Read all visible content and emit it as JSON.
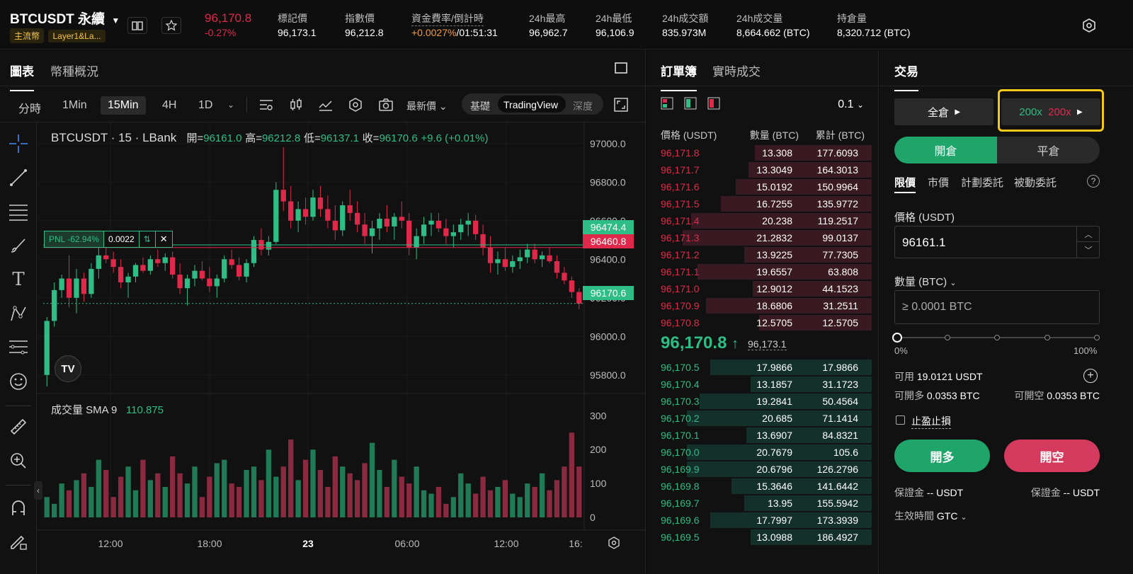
{
  "header": {
    "symbol": "BTCUSDT 永續",
    "tags": [
      "主流幣",
      "Layer1&La..."
    ],
    "price": "96,170.8",
    "change": "-0.27%",
    "stats": [
      {
        "label": "標記價",
        "value": "96,173.1"
      },
      {
        "label": "指數價",
        "value": "96,212.8"
      },
      {
        "label": "資金費率/倒計時",
        "value_rate": "+0.0027%",
        "value_time": "/01:51:31"
      },
      {
        "label": "24h最高",
        "value": "96,962.7"
      },
      {
        "label": "24h最低",
        "value": "96,106.9"
      },
      {
        "label": "24h成交額",
        "value": "835.973M"
      },
      {
        "label": "24h成交量",
        "value": "8,664.662 (BTC)"
      },
      {
        "label": "持倉量",
        "value": "8,320.712 (BTC)"
      }
    ]
  },
  "chart_panel": {
    "tabs": [
      "圖表",
      "幣種概況"
    ],
    "intervals": [
      "分時",
      "1Min",
      "15Min",
      "4H",
      "1D"
    ],
    "selected_interval": "15Min",
    "price_type": "最新價",
    "views": [
      "基礎",
      "TradingView",
      "深度"
    ],
    "selected_view": "TradingView",
    "legend": {
      "title": "BTCUSDT · 15 · LBank",
      "open_label": "開=",
      "open": "96161.0",
      "high_label": "高=",
      "high": "96212.8",
      "low_label": "低=",
      "low": "96137.1",
      "close_label": "收=",
      "close": "96170.6",
      "change": "+9.6 (+0.01%)"
    },
    "pnl": {
      "label": "PNL -62.94%",
      "qty": "0.0022"
    },
    "price_tags": {
      "green_top": "96474.4",
      "red": "96460.8",
      "last": "96170.6"
    },
    "volume_legend": {
      "label": "成交量 SMA 9",
      "value": "110.875"
    }
  },
  "chart_data": {
    "type": "candlestick",
    "y_ticks": [
      "97000.0",
      "96800.0",
      "96600.0",
      "96400.0",
      "96200.0",
      "96000.0",
      "95800.0"
    ],
    "x_ticks": [
      "12:00",
      "18:00",
      "23",
      "06:00",
      "12:00",
      "16:"
    ],
    "volume_ticks": [
      "300",
      "200",
      "100",
      "0"
    ],
    "ylim": [
      95700,
      97080
    ],
    "volume_ylim": [
      0,
      330
    ],
    "candles_ohlc": [
      [
        95800,
        96100,
        95740,
        96080
      ],
      [
        96080,
        96280,
        96050,
        96240
      ],
      [
        96240,
        96320,
        96200,
        96300
      ],
      [
        96300,
        96420,
        96150,
        96200
      ],
      [
        96200,
        96350,
        96120,
        96300
      ],
      [
        96300,
        96330,
        96180,
        96220
      ],
      [
        96220,
        96380,
        96200,
        96350
      ],
      [
        96350,
        96460,
        96300,
        96420
      ],
      [
        96420,
        96470,
        96380,
        96400
      ],
      [
        96400,
        96440,
        96330,
        96360
      ],
      [
        96360,
        96400,
        96250,
        96280
      ],
      [
        96280,
        96330,
        96200,
        96310
      ],
      [
        96310,
        96380,
        96280,
        96370
      ],
      [
        96370,
        96410,
        96330,
        96340
      ],
      [
        96340,
        96420,
        96320,
        96400
      ],
      [
        96400,
        96450,
        96360,
        96380
      ],
      [
        96380,
        96430,
        96340,
        96410
      ],
      [
        96410,
        96440,
        96300,
        96320
      ],
      [
        96320,
        96380,
        96220,
        96250
      ],
      [
        96250,
        96320,
        96160,
        96300
      ],
      [
        96300,
        96370,
        96260,
        96340
      ],
      [
        96340,
        96390,
        96290,
        96300
      ],
      [
        96300,
        96360,
        96230,
        96260
      ],
      [
        96260,
        96320,
        96200,
        96300
      ],
      [
        96300,
        96420,
        96280,
        96400
      ],
      [
        96400,
        96450,
        96350,
        96370
      ],
      [
        96370,
        96410,
        96290,
        96310
      ],
      [
        96310,
        96400,
        96280,
        96380
      ],
      [
        96380,
        96520,
        96360,
        96500
      ],
      [
        96500,
        96560,
        96420,
        96450
      ],
      [
        96450,
        96520,
        96420,
        96490
      ],
      [
        96490,
        96800,
        96480,
        96760
      ],
      [
        96760,
        96980,
        96650,
        96700
      ],
      [
        96700,
        96780,
        96560,
        96600
      ],
      [
        96600,
        96700,
        96540,
        96660
      ],
      [
        96660,
        96720,
        96580,
        96620
      ],
      [
        96620,
        96760,
        96600,
        96720
      ],
      [
        96720,
        96780,
        96620,
        96660
      ],
      [
        96660,
        96730,
        96560,
        96600
      ],
      [
        96600,
        96680,
        96500,
        96550
      ],
      [
        96550,
        96700,
        96520,
        96680
      ],
      [
        96680,
        96760,
        96600,
        96640
      ],
      [
        96640,
        96700,
        96540,
        96580
      ],
      [
        96580,
        96640,
        96480,
        96520
      ],
      [
        96520,
        96600,
        96430,
        96560
      ],
      [
        96560,
        96640,
        96500,
        96610
      ],
      [
        96610,
        96680,
        96540,
        96570
      ],
      [
        96570,
        96640,
        96500,
        96620
      ],
      [
        96620,
        96700,
        96560,
        96600
      ],
      [
        96600,
        96640,
        96420,
        96460
      ],
      [
        96460,
        96560,
        96400,
        96520
      ],
      [
        96520,
        96620,
        96480,
        96580
      ],
      [
        96580,
        96640,
        96520,
        96600
      ],
      [
        96600,
        96640,
        96540,
        96560
      ],
      [
        96560,
        96610,
        96480,
        96520
      ],
      [
        96520,
        96580,
        96460,
        96540
      ],
      [
        96540,
        96610,
        96500,
        96580
      ],
      [
        96580,
        96640,
        96520,
        96600
      ],
      [
        96600,
        96630,
        96500,
        96530
      ],
      [
        96530,
        96580,
        96420,
        96460
      ],
      [
        96460,
        96520,
        96330,
        96380
      ],
      [
        96380,
        96440,
        96320,
        96400
      ],
      [
        96400,
        96460,
        96340,
        96360
      ],
      [
        96360,
        96420,
        96330,
        96390
      ],
      [
        96390,
        96450,
        96350,
        96410
      ],
      [
        96410,
        96480,
        96380,
        96450
      ],
      [
        96450,
        96480,
        96380,
        96400
      ],
      [
        96400,
        96440,
        96360,
        96420
      ],
      [
        96420,
        96460,
        96380,
        96390
      ],
      [
        96390,
        96420,
        96300,
        96330
      ],
      [
        96330,
        96360,
        96270,
        96290
      ],
      [
        96290,
        96310,
        96200,
        96230
      ],
      [
        96230,
        96250,
        96140,
        96170
      ]
    ],
    "volumes": [
      60,
      40,
      100,
      80,
      110,
      130,
      90,
      170,
      140,
      60,
      120,
      150,
      80,
      170,
      110,
      130,
      90,
      180,
      130,
      100,
      150,
      60,
      120,
      160,
      170,
      100,
      90,
      140,
      150,
      110,
      200,
      120,
      150,
      230,
      110,
      170,
      200,
      140,
      90,
      180,
      150,
      130,
      110,
      160,
      220,
      140,
      90,
      170,
      120,
      100,
      150,
      80,
      70,
      90,
      40,
      60,
      130,
      100,
      70,
      120,
      80,
      90,
      110,
      70,
      60,
      100,
      90,
      130,
      80,
      110,
      150,
      250,
      150
    ]
  },
  "orderbook": {
    "tabs": [
      "訂單簿",
      "實時成交"
    ],
    "precision": "0.1",
    "headers": [
      "價格 (USDT)",
      "數量 (BTC)",
      "累計 (BTC)"
    ],
    "asks": [
      {
        "p": "96,171.8",
        "q": "13.308",
        "c": "177.6093",
        "d": 0.55
      },
      {
        "p": "96,171.7",
        "q": "13.3049",
        "c": "164.3013",
        "d": 0.58
      },
      {
        "p": "96,171.6",
        "q": "15.0192",
        "c": "150.9964",
        "d": 0.64
      },
      {
        "p": "96,171.5",
        "q": "16.7255",
        "c": "135.9772",
        "d": 0.71
      },
      {
        "p": "96,171.4",
        "q": "20.238",
        "c": "119.2517",
        "d": 0.85
      },
      {
        "p": "96,171.3",
        "q": "21.2832",
        "c": "99.0137",
        "d": 0.89
      },
      {
        "p": "96,171.2",
        "q": "13.9225",
        "c": "77.7305",
        "d": 0.6
      },
      {
        "p": "96,171.1",
        "q": "19.6557",
        "c": "63.808",
        "d": 0.82
      },
      {
        "p": "96,171.0",
        "q": "12.9012",
        "c": "44.1523",
        "d": 0.56
      },
      {
        "p": "96,170.9",
        "q": "18.6806",
        "c": "31.2511",
        "d": 0.78
      },
      {
        "p": "96,170.8",
        "q": "12.5705",
        "c": "12.5705",
        "d": 0.53
      }
    ],
    "last_price": "96,170.8",
    "mark_price": "96,173.1",
    "bids": [
      {
        "p": "96,170.5",
        "q": "17.9866",
        "c": "17.9866",
        "d": 0.76
      },
      {
        "p": "96,170.4",
        "q": "13.1857",
        "c": "31.1723",
        "d": 0.57
      },
      {
        "p": "96,170.3",
        "q": "19.2841",
        "c": "50.4564",
        "d": 0.81
      },
      {
        "p": "96,170.2",
        "q": "20.685",
        "c": "71.1414",
        "d": 0.87
      },
      {
        "p": "96,170.1",
        "q": "13.6907",
        "c": "84.8321",
        "d": 0.59
      },
      {
        "p": "96,170.0",
        "q": "20.7679",
        "c": "105.6",
        "d": 0.87
      },
      {
        "p": "96,169.9",
        "q": "20.6796",
        "c": "126.2796",
        "d": 0.87
      },
      {
        "p": "96,169.8",
        "q": "15.3646",
        "c": "141.6442",
        "d": 0.66
      },
      {
        "p": "96,169.7",
        "q": "13.95",
        "c": "155.5942",
        "d": 0.6
      },
      {
        "p": "96,169.6",
        "q": "17.7997",
        "c": "173.3939",
        "d": 0.76
      },
      {
        "p": "96,169.5",
        "q": "13.0988",
        "c": "186.4927",
        "d": 0.57
      }
    ]
  },
  "trade": {
    "title": "交易",
    "margin_mode": "全倉",
    "leverage_long": "200x",
    "leverage_short": "200x",
    "open_tab": "開倉",
    "close_tab": "平倉",
    "order_types": [
      "限價",
      "市價",
      "計劃委託",
      "被動委託"
    ],
    "price_label": "價格 (USDT)",
    "price_value": "96161.1",
    "qty_label": "數量 (BTC)",
    "qty_placeholder": "≥ 0.0001 BTC",
    "slider_min": "0%",
    "slider_max": "100%",
    "slider_value": 0,
    "available_label": "可用",
    "available": "19.0121 USDT",
    "can_long_label": "可開多",
    "can_long": "0.0353 BTC",
    "can_short_label": "可開空",
    "can_short": "0.0353 BTC",
    "tpsl": "止盈止損",
    "buy_long": "開多",
    "sell_short": "開空",
    "margin_label_left": "保證金",
    "margin_value_left": "-- USDT",
    "margin_label_right": "保證金",
    "margin_value_right": "-- USDT",
    "tif_label": "生效時間",
    "tif_value": "GTC"
  },
  "colors": {
    "green": "#2ebd85",
    "red": "#e0294a",
    "accent": "#f5c543",
    "bg": "#0b0b0b"
  }
}
